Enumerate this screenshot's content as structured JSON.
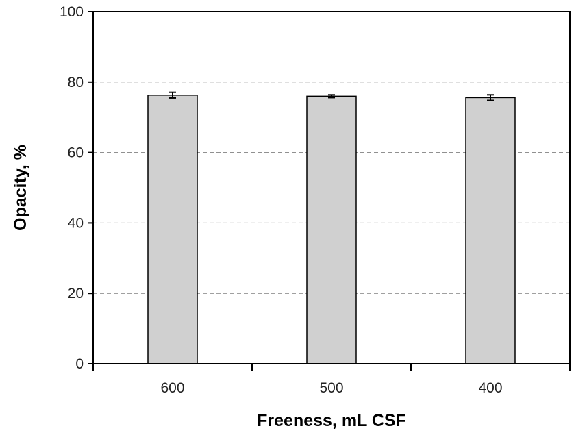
{
  "chart_data": {
    "type": "bar",
    "title": "",
    "xlabel": "Freeness, mL CSF",
    "ylabel": "Opacity, %",
    "categories": [
      "600",
      "500",
      "400"
    ],
    "values": [
      76.3,
      76.0,
      75.6
    ],
    "errors": [
      0.8,
      0.4,
      0.8
    ],
    "ylim": [
      0,
      100
    ],
    "yticks": [
      0,
      20,
      40,
      60,
      80,
      100
    ],
    "grid": "horizontal-dashed",
    "legend": "none",
    "colors": {
      "bar_fill": "#d0d0d0",
      "bar_stroke": "#000000",
      "grid": "#808080",
      "axis": "#000000"
    }
  }
}
